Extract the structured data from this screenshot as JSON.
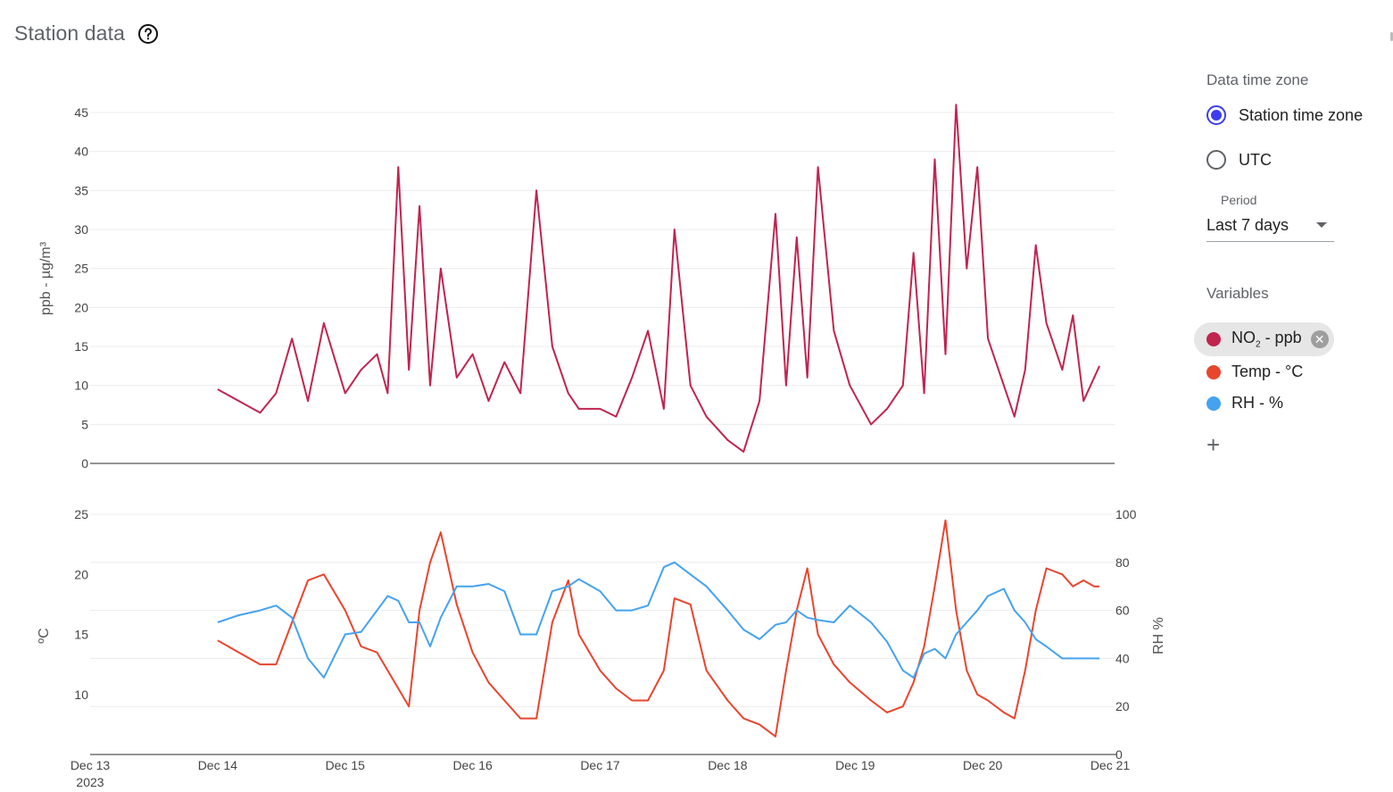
{
  "header": {
    "title": "Station data"
  },
  "panel": {
    "time_zone_label": "Data time zone",
    "time_zone_options": [
      {
        "label": "Station time zone",
        "selected": true
      },
      {
        "label": "UTC",
        "selected": false
      }
    ],
    "period_label": "Period",
    "period_value": "Last 7 days",
    "variables_label": "Variables",
    "variables": [
      {
        "name": "NO",
        "sub": "2",
        "suffix": " - ppb",
        "color": "#c0244f",
        "active": true
      },
      {
        "name": "Temp - °C",
        "color": "#e8452e",
        "active": false
      },
      {
        "name": "RH - %",
        "color": "#45a2f0",
        "active": false
      }
    ],
    "add_icon": "plus-icon",
    "chip_close_icon": "close-circle-icon"
  },
  "chart_data": [
    {
      "type": "line",
      "ylabel": "ppb - µg/m³",
      "ylim": [
        0,
        45
      ],
      "yticks": [
        0,
        5,
        10,
        15,
        20,
        25,
        30,
        35,
        40,
        45
      ],
      "grid": true,
      "series": [
        {
          "name": "NO2 - ppb",
          "color": "#c0244f",
          "x": [
            "2023-12-14T00:00",
            "2023-12-14T04:00",
            "2023-12-14T08:00",
            "2023-12-14T11:00",
            "2023-12-14T14:00",
            "2023-12-14T17:00",
            "2023-12-14T20:00",
            "2023-12-15T00:00",
            "2023-12-15T03:00",
            "2023-12-15T06:00",
            "2023-12-15T08:00",
            "2023-12-15T10:00",
            "2023-12-15T12:00",
            "2023-12-15T14:00",
            "2023-12-15T16:00",
            "2023-12-15T18:00",
            "2023-12-15T21:00",
            "2023-12-16T00:00",
            "2023-12-16T03:00",
            "2023-12-16T06:00",
            "2023-12-16T09:00",
            "2023-12-16T12:00",
            "2023-12-16T15:00",
            "2023-12-16T18:00",
            "2023-12-16T20:00",
            "2023-12-17T00:00",
            "2023-12-17T03:00",
            "2023-12-17T06:00",
            "2023-12-17T09:00",
            "2023-12-17T12:00",
            "2023-12-17T14:00",
            "2023-12-17T17:00",
            "2023-12-17T20:00",
            "2023-12-18T00:00",
            "2023-12-18T03:00",
            "2023-12-18T06:00",
            "2023-12-18T09:00",
            "2023-12-18T11:00",
            "2023-12-18T13:00",
            "2023-12-18T15:00",
            "2023-12-18T17:00",
            "2023-12-18T20:00",
            "2023-12-18T23:00",
            "2023-12-19T03:00",
            "2023-12-19T06:00",
            "2023-12-19T09:00",
            "2023-12-19T11:00",
            "2023-12-19T13:00",
            "2023-12-19T15:00",
            "2023-12-19T17:00",
            "2023-12-19T19:00",
            "2023-12-19T21:00",
            "2023-12-19T23:00",
            "2023-12-20T01:00",
            "2023-12-20T04:00",
            "2023-12-20T06:00",
            "2023-12-20T08:00",
            "2023-12-20T10:00",
            "2023-12-20T12:00",
            "2023-12-20T15:00",
            "2023-12-20T17:00",
            "2023-12-20T19:00",
            "2023-12-20T21:00",
            "2023-12-20T22:00"
          ],
          "values": [
            9.5,
            8,
            6.5,
            9,
            16,
            8,
            18,
            9,
            12,
            14,
            9,
            38,
            12,
            33,
            10,
            25,
            11,
            14,
            8,
            13,
            9,
            35,
            15,
            9,
            7,
            7,
            6,
            11,
            17,
            7,
            30,
            10,
            6,
            3,
            1.5,
            8,
            32,
            10,
            29,
            11,
            38,
            17,
            10,
            5,
            7,
            10,
            27,
            9,
            39,
            14,
            46,
            25,
            38,
            16,
            10,
            6,
            12,
            28,
            18,
            12,
            19,
            8,
            11,
            12.5
          ]
        }
      ]
    },
    {
      "type": "line",
      "ylabel": "ºC",
      "ylim": [
        5,
        25
      ],
      "yticks": [
        10,
        15,
        20,
        25
      ],
      "y2label": "RH %",
      "y2lim": [
        0,
        100
      ],
      "y2ticks": [
        0,
        20,
        40,
        60,
        80,
        100
      ],
      "xlim": [
        "2023-12-13",
        "2023-12-21"
      ],
      "xticks": [
        "Dec 13",
        "Dec 14",
        "Dec 15",
        "Dec 16",
        "Dec 17",
        "Dec 18",
        "Dec 19",
        "Dec 20",
        "Dec 21"
      ],
      "xtick_sublabel": "2023",
      "grid": true,
      "series": [
        {
          "name": "Temp - °C",
          "color": "#e8452e",
          "axis": "left",
          "x": [
            "2023-12-14T00:00",
            "2023-12-14T04:00",
            "2023-12-14T08:00",
            "2023-12-14T11:00",
            "2023-12-14T14:00",
            "2023-12-14T17:00",
            "2023-12-14T20:00",
            "2023-12-15T00:00",
            "2023-12-15T03:00",
            "2023-12-15T06:00",
            "2023-12-15T08:00",
            "2023-12-15T10:00",
            "2023-12-15T12:00",
            "2023-12-15T14:00",
            "2023-12-15T16:00",
            "2023-12-15T18:00",
            "2023-12-15T21:00",
            "2023-12-16T00:00",
            "2023-12-16T03:00",
            "2023-12-16T06:00",
            "2023-12-16T09:00",
            "2023-12-16T12:00",
            "2023-12-16T15:00",
            "2023-12-16T18:00",
            "2023-12-16T20:00",
            "2023-12-17T00:00",
            "2023-12-17T03:00",
            "2023-12-17T06:00",
            "2023-12-17T09:00",
            "2023-12-17T12:00",
            "2023-12-17T14:00",
            "2023-12-17T17:00",
            "2023-12-17T20:00",
            "2023-12-18T00:00",
            "2023-12-18T03:00",
            "2023-12-18T06:00",
            "2023-12-18T09:00",
            "2023-12-18T11:00",
            "2023-12-18T13:00",
            "2023-12-18T15:00",
            "2023-12-18T17:00",
            "2023-12-18T20:00",
            "2023-12-18T23:00",
            "2023-12-19T03:00",
            "2023-12-19T06:00",
            "2023-12-19T09:00",
            "2023-12-19T11:00",
            "2023-12-19T13:00",
            "2023-12-19T15:00",
            "2023-12-19T17:00",
            "2023-12-19T19:00",
            "2023-12-19T21:00",
            "2023-12-19T23:00",
            "2023-12-20T01:00",
            "2023-12-20T04:00",
            "2023-12-20T06:00",
            "2023-12-20T08:00",
            "2023-12-20T10:00",
            "2023-12-20T12:00",
            "2023-12-20T15:00",
            "2023-12-20T17:00",
            "2023-12-20T19:00",
            "2023-12-20T21:00",
            "2023-12-20T22:00"
          ],
          "values": [
            14.5,
            13.5,
            12.5,
            12.5,
            16,
            19.5,
            20,
            17,
            14,
            13.5,
            12,
            10.5,
            9,
            17,
            21,
            23.5,
            17.5,
            13.5,
            11,
            9.5,
            8,
            8,
            16,
            19.5,
            15,
            12,
            10.5,
            9.5,
            9.5,
            12,
            18,
            17.5,
            12,
            9.5,
            8,
            7.5,
            6.5,
            12,
            17,
            20.5,
            15,
            12.5,
            11,
            9.5,
            8.5,
            9,
            11,
            14,
            19,
            24.5,
            17,
            12,
            10,
            9.5,
            8.5,
            8,
            12,
            17,
            20.5,
            20,
            19,
            19.5,
            19,
            19
          ]
        },
        {
          "name": "RH - %",
          "color": "#45a2f0",
          "axis": "right",
          "x": [
            "2023-12-14T00:00",
            "2023-12-14T04:00",
            "2023-12-14T08:00",
            "2023-12-14T11:00",
            "2023-12-14T14:00",
            "2023-12-14T17:00",
            "2023-12-14T20:00",
            "2023-12-15T00:00",
            "2023-12-15T03:00",
            "2023-12-15T06:00",
            "2023-12-15T08:00",
            "2023-12-15T10:00",
            "2023-12-15T12:00",
            "2023-12-15T14:00",
            "2023-12-15T16:00",
            "2023-12-15T18:00",
            "2023-12-15T21:00",
            "2023-12-16T00:00",
            "2023-12-16T03:00",
            "2023-12-16T06:00",
            "2023-12-16T09:00",
            "2023-12-16T12:00",
            "2023-12-16T15:00",
            "2023-12-16T18:00",
            "2023-12-16T20:00",
            "2023-12-17T00:00",
            "2023-12-17T03:00",
            "2023-12-17T06:00",
            "2023-12-17T09:00",
            "2023-12-17T12:00",
            "2023-12-17T14:00",
            "2023-12-17T17:00",
            "2023-12-17T20:00",
            "2023-12-18T00:00",
            "2023-12-18T03:00",
            "2023-12-18T06:00",
            "2023-12-18T09:00",
            "2023-12-18T11:00",
            "2023-12-18T13:00",
            "2023-12-18T15:00",
            "2023-12-18T17:00",
            "2023-12-18T20:00",
            "2023-12-18T23:00",
            "2023-12-19T03:00",
            "2023-12-19T06:00",
            "2023-12-19T09:00",
            "2023-12-19T11:00",
            "2023-12-19T13:00",
            "2023-12-19T15:00",
            "2023-12-19T17:00",
            "2023-12-19T19:00",
            "2023-12-19T21:00",
            "2023-12-19T23:00",
            "2023-12-20T01:00",
            "2023-12-20T04:00",
            "2023-12-20T06:00",
            "2023-12-20T08:00",
            "2023-12-20T10:00",
            "2023-12-20T12:00",
            "2023-12-20T15:00",
            "2023-12-20T17:00",
            "2023-12-20T19:00",
            "2023-12-20T21:00",
            "2023-12-20T22:00"
          ],
          "values": [
            55,
            58,
            60,
            62,
            57,
            40,
            32,
            50,
            51,
            60,
            66,
            64,
            55,
            55,
            45,
            57,
            70,
            70,
            71,
            68,
            50,
            50,
            68,
            70,
            73,
            68,
            60,
            60,
            62,
            78,
            80,
            75,
            70,
            60,
            52,
            48,
            54,
            55,
            60,
            57,
            56,
            55,
            62,
            55,
            47,
            35,
            32,
            42,
            44,
            40,
            50,
            55,
            60,
            66,
            69,
            60,
            55,
            48,
            45,
            40,
            40,
            40,
            40,
            40
          ]
        }
      ]
    }
  ]
}
